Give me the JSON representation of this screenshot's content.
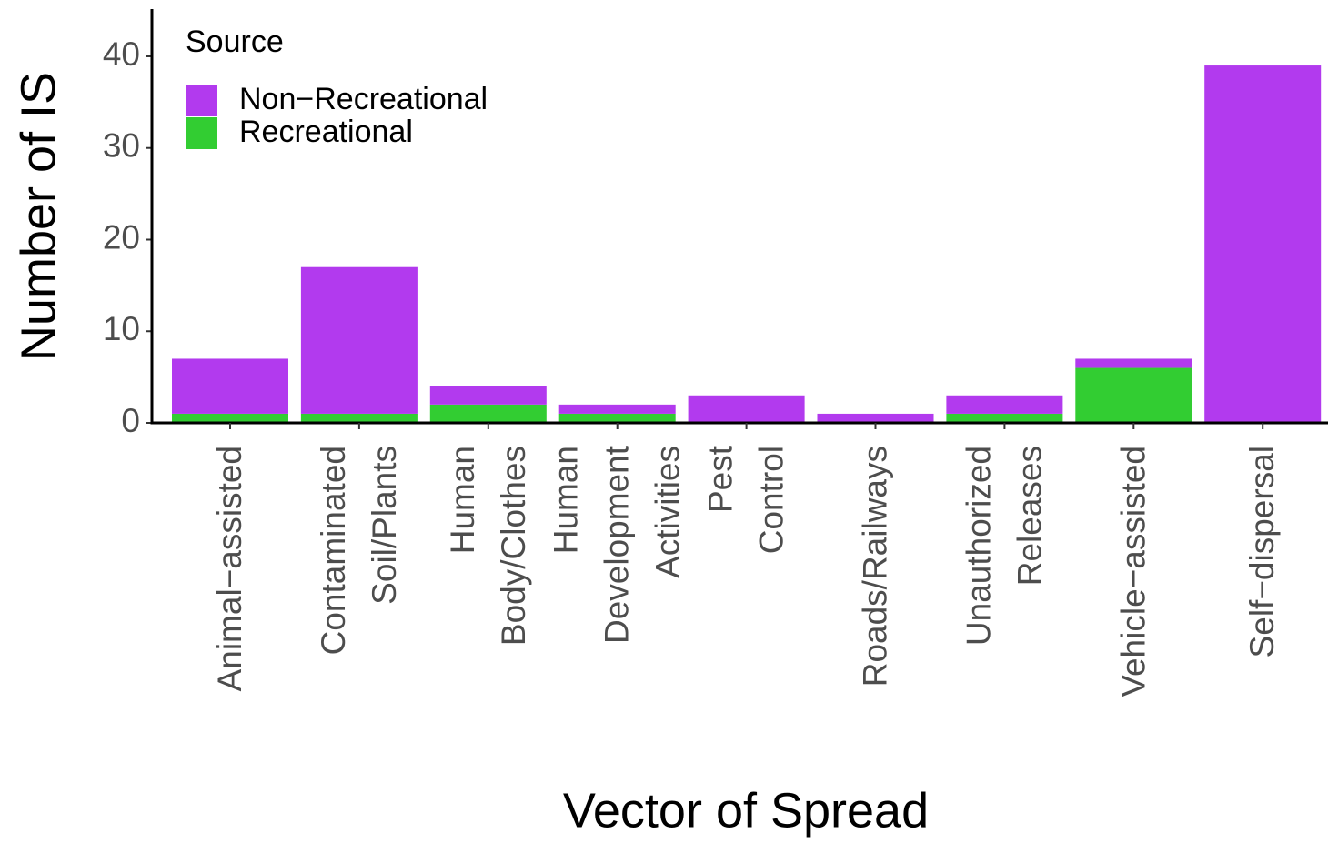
{
  "chart_data": {
    "type": "stacked_bar",
    "xlabel": "Vector of Spread",
    "ylabel": "Number of IS",
    "legend_title": "Source",
    "legend": "top-left",
    "categories": [
      "Animal−assisted",
      "Contaminated\nSoil/Plants",
      "Human\nBody/Clothes",
      "Human\nDevelopment\nActivities",
      "Pest\nControl",
      "Roads/Railways",
      "Unauthorized\nReleases",
      "Vehicle−assisted",
      "Self−dispersal"
    ],
    "series": [
      {
        "name": "Non−Recreational",
        "color": "#b23aee",
        "values": [
          6,
          16,
          2,
          1,
          3,
          1,
          2,
          1,
          39
        ]
      },
      {
        "name": "Recreational",
        "color": "#32cd32",
        "values": [
          1,
          1,
          2,
          1,
          0,
          0,
          1,
          6,
          0
        ]
      }
    ],
    "ylim": [
      0,
      45
    ],
    "yticks": [
      0,
      10,
      20,
      30,
      40
    ],
    "grid": false
  }
}
